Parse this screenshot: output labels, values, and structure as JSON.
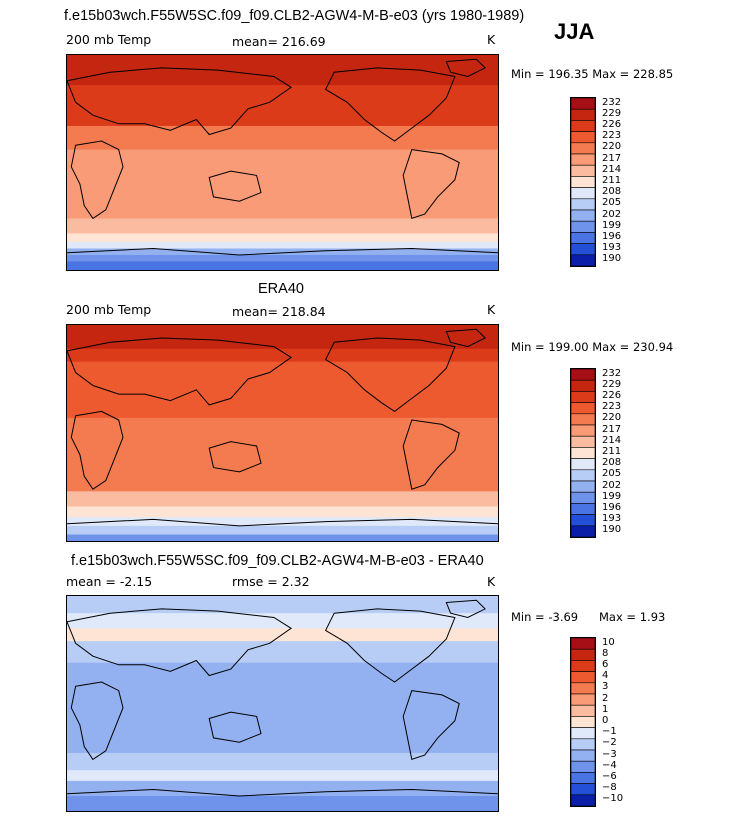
{
  "season": "JJA",
  "chart_data": [
    {
      "type": "heatmap",
      "title": "f.e15b03wch.F55W5SC.f09_f09.CLB2-AGW4-M-B-e03 (yrs 1980-1989)",
      "left_label": "200 mb Temp",
      "center_label": "mean= 216.69",
      "units": "K",
      "stats": "Min = 196.35 Max = 228.85",
      "levels": [
        "232",
        "229",
        "226",
        "223",
        "220",
        "217",
        "214",
        "211",
        "208",
        "205",
        "202",
        "199",
        "196",
        "193",
        "190"
      ],
      "colors": [
        "#a50f15",
        "#c4260f",
        "#dc3b1a",
        "#ee5a30",
        "#f47b50",
        "#f99b76",
        "#fbbba0",
        "#fde4d4",
        "#dfe9f9",
        "#b8cdf5",
        "#93b1f0",
        "#6f93ea",
        "#4a74e3",
        "#2450d8",
        "#0a1ea8"
      ],
      "bands": [
        {
          "level": 231,
          "frac": 0.14
        },
        {
          "level": 228,
          "frac": 0.06
        },
        {
          "level": 226,
          "frac": 0.13
        },
        {
          "level": 222,
          "frac": 0.11
        },
        {
          "level": 219,
          "frac": 0.12
        },
        {
          "level": 219,
          "frac": 0.1
        },
        {
          "level": 219,
          "frac": 0.1
        },
        {
          "level": 216,
          "frac": 0.07
        },
        {
          "level": 212,
          "frac": 0.04
        },
        {
          "level": 209,
          "frac": 0.03
        },
        {
          "level": 204,
          "frac": 0.03
        },
        {
          "level": 200,
          "frac": 0.03
        },
        {
          "level": 197,
          "frac": 0.04
        }
      ]
    },
    {
      "type": "heatmap",
      "title": "ERA40",
      "left_label": "200 mb Temp",
      "center_label": "mean= 218.84",
      "units": "K",
      "stats": "Min = 199.00 Max = 230.94",
      "levels": [
        "232",
        "229",
        "226",
        "223",
        "220",
        "217",
        "214",
        "211",
        "208",
        "205",
        "202",
        "199",
        "196",
        "193",
        "190"
      ],
      "colors": [
        "#a50f15",
        "#c4260f",
        "#dc3b1a",
        "#ee5a30",
        "#f47b50",
        "#f99b76",
        "#fbbba0",
        "#fde4d4",
        "#dfe9f9",
        "#b8cdf5",
        "#93b1f0",
        "#6f93ea",
        "#4a74e3",
        "#2450d8",
        "#0a1ea8"
      ],
      "bands": [
        {
          "level": 231,
          "frac": 0.11
        },
        {
          "level": 228,
          "frac": 0.06
        },
        {
          "level": 225,
          "frac": 0.12
        },
        {
          "level": 223,
          "frac": 0.14
        },
        {
          "level": 221,
          "frac": 0.14
        },
        {
          "level": 221,
          "frac": 0.12
        },
        {
          "level": 220,
          "frac": 0.08
        },
        {
          "level": 216,
          "frac": 0.07
        },
        {
          "level": 213,
          "frac": 0.05
        },
        {
          "level": 209,
          "frac": 0.04
        },
        {
          "level": 205,
          "frac": 0.04
        },
        {
          "level": 201,
          "frac": 0.03
        }
      ]
    },
    {
      "type": "heatmap",
      "title": "f.e15b03wch.F55W5SC.f09_f09.CLB2-AGW4-M-B-e03 - ERA40",
      "left_label": "mean = -2.15",
      "center_label": "rmse = 2.32",
      "units": "K",
      "stats_min": "Min = -3.69",
      "stats_max": "Max = 1.93",
      "levels": [
        "10",
        "8",
        "6",
        "4",
        "3",
        "2",
        "1",
        "0",
        "−1",
        "−2",
        "−3",
        "−4",
        "−6",
        "−8",
        "−10"
      ],
      "colors": [
        "#a50f15",
        "#c4260f",
        "#dc3b1a",
        "#ee5a30",
        "#f47b50",
        "#f99b76",
        "#fbbba0",
        "#fde4d4",
        "#dfe9f9",
        "#b8cdf5",
        "#93b1f0",
        "#6f93ea",
        "#4a74e3",
        "#2450d8",
        "#0a1ea8"
      ],
      "bands": [
        {
          "level": -1.5,
          "frac": 0.08
        },
        {
          "level": -0.5,
          "frac": 0.07
        },
        {
          "level": 0.3,
          "frac": 0.06
        },
        {
          "level": -1.5,
          "frac": 0.1
        },
        {
          "level": -2.5,
          "frac": 0.14
        },
        {
          "level": -3.0,
          "frac": 0.16
        },
        {
          "level": -2.5,
          "frac": 0.12
        },
        {
          "level": -1.5,
          "frac": 0.08
        },
        {
          "level": -0.5,
          "frac": 0.05
        },
        {
          "level": -2.5,
          "frac": 0.07
        },
        {
          "level": -3.3,
          "frac": 0.07
        }
      ]
    }
  ]
}
